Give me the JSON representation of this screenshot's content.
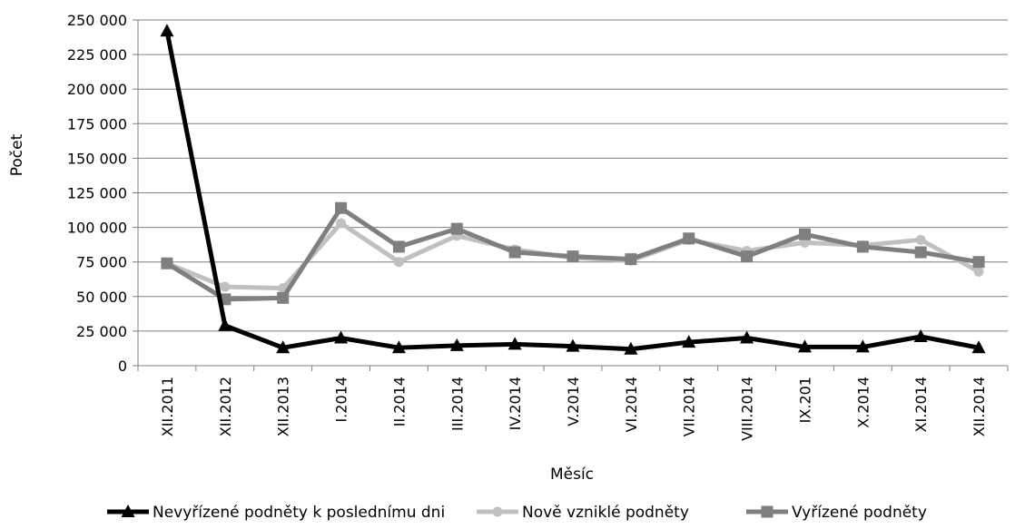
{
  "chart_data": {
    "type": "line",
    "title": "",
    "xlabel": "Měsíc",
    "ylabel": "Počet",
    "ylim": [
      0,
      250000
    ],
    "y_ticks": [
      0,
      25000,
      50000,
      75000,
      100000,
      125000,
      150000,
      175000,
      200000,
      225000,
      250000
    ],
    "y_tick_labels": [
      "0",
      "25 000",
      "50 000",
      "75 000",
      "100 000",
      "125 000",
      "150 000",
      "175 000",
      "200 000",
      "225 000",
      "250 000"
    ],
    "grid": "horizontal",
    "legend_position": "bottom",
    "categories": [
      "XII.2011",
      "XII.2012",
      "XII.2013",
      "I.2014",
      "II.2014",
      "III.2014",
      "IV.2014",
      "V.2014",
      "VI.2014",
      "VII.2014",
      "VIII.2014",
      "IX.201",
      "X.2014",
      "XI.2014",
      "XII.2014"
    ],
    "series": [
      {
        "name": "Nevyřízené podněty k poslednímu dni",
        "color": "#000000",
        "marker": "triangle",
        "values": [
          242000,
          29000,
          13000,
          20000,
          13000,
          14500,
          15500,
          14000,
          12000,
          17000,
          20000,
          13500,
          13500,
          21000,
          13000
        ]
      },
      {
        "name": "Nově vzniklé podněty",
        "color": "#c0c0c0",
        "marker": "circle",
        "values": [
          74000,
          57000,
          56000,
          103000,
          75000,
          94000,
          84000,
          78000,
          76000,
          91000,
          83000,
          89000,
          87000,
          91000,
          68000
        ]
      },
      {
        "name": "Vyřízené podněty",
        "color": "#7f7f7f",
        "marker": "square",
        "values": [
          74000,
          48000,
          49000,
          114000,
          86000,
          99000,
          82000,
          79000,
          77000,
          92000,
          79000,
          95000,
          86000,
          82000,
          75000
        ]
      }
    ]
  }
}
